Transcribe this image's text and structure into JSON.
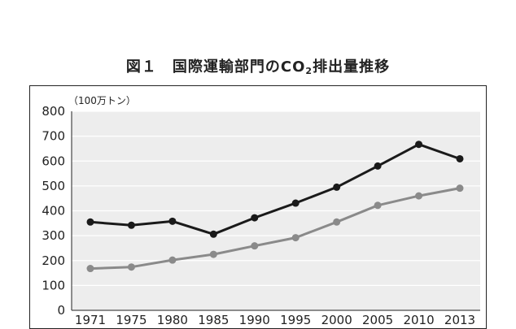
{
  "title": {
    "main": "図１　国際運輸部門のCO",
    "sub": "2",
    "tail": "排出量推移"
  },
  "chart_data": {
    "type": "line",
    "unit_label": "（100万トン）",
    "x": [
      "1971",
      "1975",
      "1980",
      "1985",
      "1990",
      "1995",
      "2000",
      "2005",
      "2010",
      "2013"
    ],
    "series": [
      {
        "values": [
          355,
          342,
          358,
          306,
          372,
          431,
          495,
          580,
          667,
          609
        ],
        "color": "#1a1a1a"
      },
      {
        "values": [
          168,
          174,
          202,
          225,
          259,
          292,
          355,
          422,
          460,
          491
        ],
        "color": "#8a8a8a"
      }
    ],
    "ylim": [
      0,
      800
    ],
    "yticks": [
      0,
      100,
      200,
      300,
      400,
      500,
      600,
      700,
      800
    ],
    "plot_background": "#ededed",
    "grid": true,
    "xlabel": "",
    "ylabel": ""
  }
}
